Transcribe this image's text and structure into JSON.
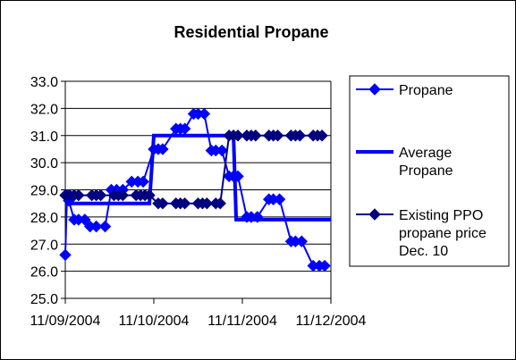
{
  "chart_data": {
    "type": "line",
    "title": "Residential Propane",
    "xlabel": "",
    "ylabel": "",
    "ylim": [
      25.0,
      33.0
    ],
    "y_ticks": [
      "33.0",
      "32.0",
      "31.0",
      "30.0",
      "29.0",
      "28.0",
      "27.0",
      "26.0",
      "25.0"
    ],
    "x_ticks": [
      "11/09/2004",
      "11/10/2004",
      "11/11/2004",
      "11/12/2004"
    ],
    "x_range": [
      0,
      3
    ],
    "gridlines": "horizontal",
    "legend_position": "right",
    "series": [
      {
        "name": "Propane",
        "color": "#0000ff",
        "marker": "diamond",
        "line_width": 2,
        "points": [
          {
            "x": 0.0,
            "y": 26.6
          },
          {
            "x": 0.02,
            "y": 28.8
          },
          {
            "x": 0.04,
            "y": 28.6
          },
          {
            "x": 0.1,
            "y": 27.9
          },
          {
            "x": 0.15,
            "y": 27.9
          },
          {
            "x": 0.22,
            "y": 27.9
          },
          {
            "x": 0.28,
            "y": 27.65
          },
          {
            "x": 0.35,
            "y": 27.65
          },
          {
            "x": 0.45,
            "y": 27.65
          },
          {
            "x": 0.52,
            "y": 29.0
          },
          {
            "x": 0.58,
            "y": 29.0
          },
          {
            "x": 0.65,
            "y": 29.0
          },
          {
            "x": 0.75,
            "y": 29.3
          },
          {
            "x": 0.82,
            "y": 29.3
          },
          {
            "x": 0.88,
            "y": 29.3
          },
          {
            "x": 1.0,
            "y": 30.5
          },
          {
            "x": 1.05,
            "y": 30.5
          },
          {
            "x": 1.1,
            "y": 30.5
          },
          {
            "x": 1.25,
            "y": 31.25
          },
          {
            "x": 1.3,
            "y": 31.25
          },
          {
            "x": 1.35,
            "y": 31.25
          },
          {
            "x": 1.45,
            "y": 31.8
          },
          {
            "x": 1.5,
            "y": 31.8
          },
          {
            "x": 1.57,
            "y": 31.8
          },
          {
            "x": 1.65,
            "y": 30.45
          },
          {
            "x": 1.7,
            "y": 30.45
          },
          {
            "x": 1.77,
            "y": 30.45
          },
          {
            "x": 1.85,
            "y": 29.5
          },
          {
            "x": 1.9,
            "y": 29.5
          },
          {
            "x": 1.95,
            "y": 29.5
          },
          {
            "x": 2.05,
            "y": 28.0
          },
          {
            "x": 2.1,
            "y": 28.0
          },
          {
            "x": 2.17,
            "y": 28.0
          },
          {
            "x": 2.3,
            "y": 28.65
          },
          {
            "x": 2.35,
            "y": 28.65
          },
          {
            "x": 2.42,
            "y": 28.65
          },
          {
            "x": 2.55,
            "y": 27.1
          },
          {
            "x": 2.6,
            "y": 27.1
          },
          {
            "x": 2.67,
            "y": 27.1
          },
          {
            "x": 2.8,
            "y": 26.2
          },
          {
            "x": 2.87,
            "y": 26.2
          },
          {
            "x": 2.93,
            "y": 26.2
          }
        ]
      },
      {
        "name": "Average Propane",
        "color": "#0000ff",
        "marker": "none",
        "line_width": 4,
        "points": [
          {
            "x": 0.0,
            "y": 28.5
          },
          {
            "x": 0.95,
            "y": 28.5
          },
          {
            "x": 1.0,
            "y": 31.0
          },
          {
            "x": 1.9,
            "y": 31.0
          },
          {
            "x": 1.93,
            "y": 27.9
          },
          {
            "x": 3.0,
            "y": 27.9
          }
        ]
      },
      {
        "name": "Existing PPO propane price Dec. 10",
        "color": "#000080",
        "marker": "diamond",
        "line_width": 2,
        "points": [
          {
            "x": 0.0,
            "y": 28.8
          },
          {
            "x": 0.05,
            "y": 28.8
          },
          {
            "x": 0.1,
            "y": 28.8
          },
          {
            "x": 0.15,
            "y": 28.8
          },
          {
            "x": 0.3,
            "y": 28.8
          },
          {
            "x": 0.35,
            "y": 28.8
          },
          {
            "x": 0.4,
            "y": 28.8
          },
          {
            "x": 0.55,
            "y": 28.8
          },
          {
            "x": 0.6,
            "y": 28.8
          },
          {
            "x": 0.65,
            "y": 28.8
          },
          {
            "x": 0.8,
            "y": 28.8
          },
          {
            "x": 0.85,
            "y": 28.8
          },
          {
            "x": 0.9,
            "y": 28.8
          },
          {
            "x": 0.95,
            "y": 28.8
          },
          {
            "x": 1.05,
            "y": 28.5
          },
          {
            "x": 1.1,
            "y": 28.5
          },
          {
            "x": 1.25,
            "y": 28.5
          },
          {
            "x": 1.3,
            "y": 28.5
          },
          {
            "x": 1.35,
            "y": 28.5
          },
          {
            "x": 1.5,
            "y": 28.5
          },
          {
            "x": 1.55,
            "y": 28.5
          },
          {
            "x": 1.6,
            "y": 28.5
          },
          {
            "x": 1.7,
            "y": 28.5
          },
          {
            "x": 1.75,
            "y": 28.5
          },
          {
            "x": 1.85,
            "y": 31.0
          },
          {
            "x": 1.9,
            "y": 31.0
          },
          {
            "x": 1.95,
            "y": 31.0
          },
          {
            "x": 2.05,
            "y": 31.0
          },
          {
            "x": 2.1,
            "y": 31.0
          },
          {
            "x": 2.15,
            "y": 31.0
          },
          {
            "x": 2.3,
            "y": 31.0
          },
          {
            "x": 2.35,
            "y": 31.0
          },
          {
            "x": 2.4,
            "y": 31.0
          },
          {
            "x": 2.55,
            "y": 31.0
          },
          {
            "x": 2.6,
            "y": 31.0
          },
          {
            "x": 2.65,
            "y": 31.0
          },
          {
            "x": 2.8,
            "y": 31.0
          },
          {
            "x": 2.85,
            "y": 31.0
          },
          {
            "x": 2.9,
            "y": 31.0
          }
        ]
      }
    ],
    "legend": [
      {
        "lines": [
          "Propane"
        ],
        "series_index": 0
      },
      {
        "lines": [
          "Average",
          "Propane"
        ],
        "series_index": 1
      },
      {
        "lines": [
          "Existing PPO",
          "propane price",
          "Dec. 10"
        ],
        "series_index": 2
      }
    ]
  }
}
